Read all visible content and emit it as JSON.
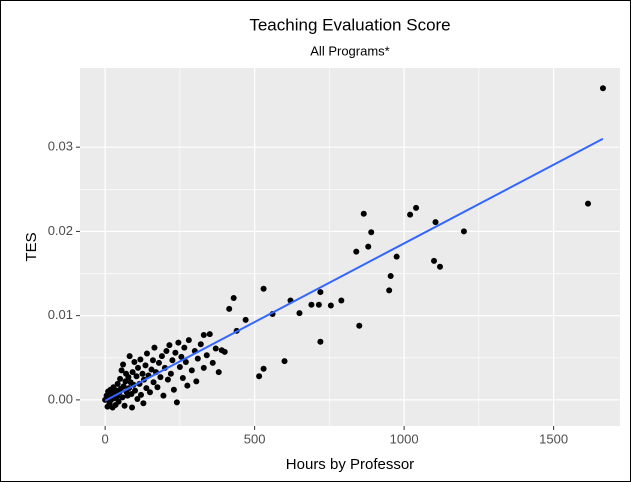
{
  "chart_data": {
    "type": "scatter",
    "title": "Teaching Evaluation Score",
    "subtitle": "All Programs*",
    "x_label": "Hours by Professor",
    "y_label": "TES",
    "xlim": [
      -84,
      1722
    ],
    "ylim": [
      -0.0031,
      0.0394
    ],
    "xticks": [
      0,
      500,
      1000,
      1500
    ],
    "yticks": [
      {
        "value": 0,
        "label": "0.00"
      },
      {
        "value": 0.01,
        "label": "0.01"
      },
      {
        "value": 0.02,
        "label": "0.02"
      },
      {
        "value": 0.03,
        "label": "0.03"
      }
    ],
    "grid": true,
    "series": [
      {
        "color": "#000000",
        "x": [
          0,
          5,
          8,
          10,
          12,
          15,
          18,
          20,
          22,
          25,
          28,
          30,
          32,
          35,
          38,
          40,
          42,
          45,
          48,
          50,
          52,
          55,
          58,
          60,
          62,
          65,
          68,
          70,
          72,
          75,
          78,
          80,
          82,
          85,
          88,
          90,
          92,
          95,
          98,
          100,
          105,
          108,
          110,
          115,
          118,
          120,
          125,
          128,
          130,
          135,
          138,
          140,
          145,
          150,
          155,
          160,
          162,
          165,
          170,
          175,
          180,
          185,
          190,
          195,
          200,
          205,
          210,
          215,
          220,
          225,
          230,
          235,
          240,
          245,
          250,
          255,
          260,
          265,
          270,
          275,
          280,
          290,
          300,
          305,
          310,
          320,
          330,
          330,
          340,
          350,
          360,
          370,
          380,
          390,
          400,
          415,
          430,
          440,
          470,
          515,
          530,
          530,
          560,
          600,
          620,
          650,
          690,
          715,
          720,
          720,
          755,
          790,
          840,
          850,
          865,
          880,
          890,
          950,
          955,
          975,
          1020,
          1040,
          1100,
          1105,
          1120,
          1200,
          1615,
          1665
        ],
        "values": [
          0,
          0.0005,
          -0.0008,
          0.001,
          0.0003,
          -0.0004,
          0.0012,
          0,
          0.0006,
          -0.0009,
          0.0015,
          0.0002,
          0.0008,
          -0.0006,
          0.0011,
          0.0004,
          0.0019,
          -0.0002,
          0.0009,
          0.0025,
          0.0013,
          0.0035,
          0.0003,
          0.0042,
          0.0016,
          -0.0007,
          0.0022,
          0.0031,
          0.0009,
          0.0005,
          0.0027,
          0.0014,
          0.0052,
          0.0021,
          0.0007,
          -0.0009,
          0.0033,
          0.0018,
          0.0045,
          0.0011,
          0.0028,
          0.0001,
          0.0038,
          0.0019,
          0.0048,
          0.0006,
          0.0031,
          -0.0004,
          0.0024,
          0.0041,
          0.0014,
          0.0055,
          0.0029,
          0.0009,
          0.0036,
          0.0047,
          0.0021,
          0.0062,
          0.0033,
          0.0015,
          0.0044,
          0.0027,
          0.0052,
          0.0005,
          0.0038,
          0.0058,
          0.0024,
          0.0065,
          0.0031,
          0.0047,
          0.0012,
          0.0056,
          -0.0003,
          0.0068,
          0.0039,
          0.0051,
          0.0026,
          0.0062,
          0.0045,
          0.0017,
          0.0071,
          0.0035,
          0.0058,
          0.0022,
          0.0049,
          0.0066,
          0.0038,
          0.0077,
          0.0053,
          0.0078,
          0.0044,
          0.0061,
          0.0033,
          0.0059,
          0.0057,
          0.0108,
          0.0121,
          0.0082,
          0.0095,
          0.0028,
          0.0132,
          0.0037,
          0.0102,
          0.0046,
          0.0118,
          0.0103,
          0.0113,
          0.0113,
          0.0128,
          0.0069,
          0.0112,
          0.0118,
          0.0176,
          0.0088,
          0.0221,
          0.0182,
          0.0199,
          0.013,
          0.0147,
          0.017,
          0.022,
          0.0228,
          0.0165,
          0.0211,
          0.0158,
          0.02,
          0.0233,
          0.037
        ]
      }
    ],
    "trend_line": {
      "color": "#3366FF",
      "x": [
        0,
        1665
      ],
      "values": [
        -0.0001,
        0.031
      ]
    }
  }
}
